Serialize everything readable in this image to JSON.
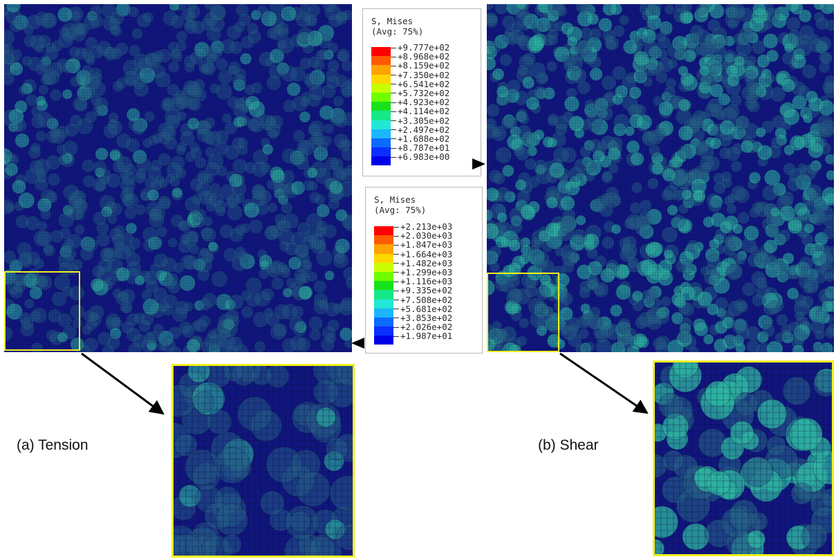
{
  "legend_tension": {
    "title_line1": "S, Mises",
    "title_line2": "(Avg: 75%)",
    "ticks": [
      "+9.777e+02",
      "+8.968e+02",
      "+8.159e+02",
      "+7.350e+02",
      "+6.541e+02",
      "+5.732e+02",
      "+4.923e+02",
      "+4.114e+02",
      "+3.305e+02",
      "+2.497e+02",
      "+1.688e+02",
      "+8.787e+01",
      "+6.983e+00"
    ]
  },
  "legend_shear": {
    "title_line1": "S, Mises",
    "title_line2": "(Avg: 75%)",
    "ticks": [
      "+2.213e+03",
      "+2.030e+03",
      "+1.847e+03",
      "+1.664e+03",
      "+1.482e+03",
      "+1.299e+03",
      "+1.116e+03",
      "+9.335e+02",
      "+7.508e+02",
      "+5.681e+02",
      "+3.853e+02",
      "+2.026e+02",
      "+1.987e+01"
    ]
  },
  "colorbar": [
    "#ff0000",
    "#ff5a00",
    "#ffa300",
    "#ffd500",
    "#c8ff00",
    "#6eff00",
    "#18e21b",
    "#15e889",
    "#20e8d4",
    "#1ab6ff",
    "#0a6bff",
    "#0a2fff",
    "#0000e8"
  ],
  "captions": {
    "tension": "(a) Tension",
    "shear": "(b) Shear"
  },
  "colors": {
    "field_base": "#11167e",
    "field_particle": "#26608a",
    "field_hot": "#2fb6a3",
    "zoom_box": "#f2ef1a"
  }
}
